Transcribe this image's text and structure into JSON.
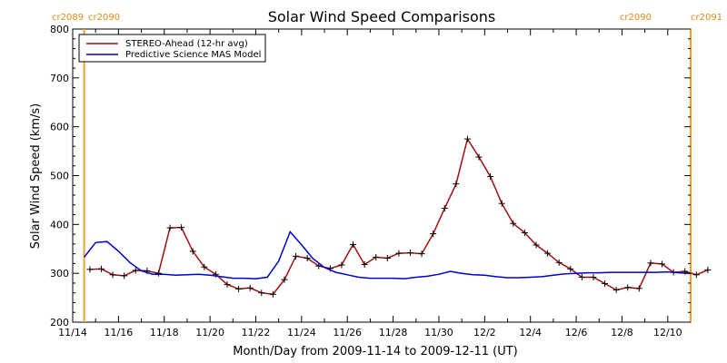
{
  "chart_data": {
    "type": "line",
    "title": "Solar Wind Speed Comparisons",
    "xlabel": "Month/Day from 2009-11-14 to 2009-12-11 (UT)",
    "ylabel": "Solar Wind Speed (km/s)",
    "xlim": [
      "2009-11-14",
      "2009-12-11"
    ],
    "ylim": [
      200,
      800
    ],
    "x_ticks": [
      "11/14",
      "11/16",
      "11/18",
      "11/20",
      "11/22",
      "11/24",
      "11/26",
      "11/28",
      "11/30",
      "12/2",
      "12/4",
      "12/6",
      "12/8",
      "12/10"
    ],
    "y_ticks": [
      200,
      300,
      400,
      500,
      600,
      700,
      800
    ],
    "legend_position": "top-left",
    "carrington_left": {
      "label_a": "cr2089",
      "label_b": "cr2090",
      "date": "2009-11-14 12:00"
    },
    "carrington_right": {
      "label_a": "cr2090",
      "label_b": "cr2091",
      "date": "2009-12-11"
    },
    "series": [
      {
        "name": "STEREO-Ahead (12-hr avg)",
        "color": "#a01010",
        "marker": "plus",
        "x": [
          "2009-11-14 18:00",
          "2009-11-15 06:00",
          "2009-11-15 18:00",
          "2009-11-16 06:00",
          "2009-11-16 18:00",
          "2009-11-17 06:00",
          "2009-11-17 18:00",
          "2009-11-18 06:00",
          "2009-11-18 18:00",
          "2009-11-19 06:00",
          "2009-11-19 18:00",
          "2009-11-20 06:00",
          "2009-11-20 18:00",
          "2009-11-21 06:00",
          "2009-11-21 18:00",
          "2009-11-22 06:00",
          "2009-11-22 18:00",
          "2009-11-23 06:00",
          "2009-11-23 18:00",
          "2009-11-24 06:00",
          "2009-11-24 18:00",
          "2009-11-25 06:00",
          "2009-11-25 18:00",
          "2009-11-26 06:00",
          "2009-11-26 18:00",
          "2009-11-27 06:00",
          "2009-11-27 18:00",
          "2009-11-28 06:00",
          "2009-11-28 18:00",
          "2009-11-29 06:00",
          "2009-11-29 18:00",
          "2009-11-30 06:00",
          "2009-11-30 18:00",
          "2009-12-01 06:00",
          "2009-12-01 18:00",
          "2009-12-02 06:00",
          "2009-12-02 18:00",
          "2009-12-03 06:00",
          "2009-12-03 18:00",
          "2009-12-04 06:00",
          "2009-12-04 18:00",
          "2009-12-05 06:00",
          "2009-12-05 18:00",
          "2009-12-06 06:00",
          "2009-12-06 18:00",
          "2009-12-07 06:00",
          "2009-12-07 18:00",
          "2009-12-08 06:00",
          "2009-12-08 18:00",
          "2009-12-09 06:00",
          "2009-12-09 18:00",
          "2009-12-10 06:00",
          "2009-12-10 18:00",
          "2009-12-11 06:00",
          "2009-12-11 18:00"
        ],
        "y": [
          308,
          309,
          297,
          295,
          306,
          305,
          300,
          393,
          394,
          345,
          313,
          298,
          277,
          268,
          270,
          260,
          257,
          287,
          335,
          331,
          315,
          310,
          317,
          359,
          318,
          333,
          331,
          341,
          342,
          340,
          381,
          433,
          483,
          575,
          538,
          498,
          443,
          402,
          383,
          358,
          341,
          322,
          309,
          292,
          292,
          279,
          266,
          271,
          269,
          321,
          319,
          302,
          304,
          297,
          307
        ]
      },
      {
        "name": "Predictive Science MAS Model",
        "color": "#0000cc",
        "marker": "none",
        "x": [
          "2009-11-14 12:00",
          "2009-11-15 00:00",
          "2009-11-15 12:00",
          "2009-11-16 00:00",
          "2009-11-16 12:00",
          "2009-11-17 00:00",
          "2009-11-17 12:00",
          "2009-11-18 00:00",
          "2009-11-18 12:00",
          "2009-11-19 00:00",
          "2009-11-19 12:00",
          "2009-11-20 00:00",
          "2009-11-20 12:00",
          "2009-11-21 00:00",
          "2009-11-21 12:00",
          "2009-11-22 00:00",
          "2009-11-22 12:00",
          "2009-11-23 00:00",
          "2009-11-23 12:00",
          "2009-11-24 00:00",
          "2009-11-24 12:00",
          "2009-11-25 00:00",
          "2009-11-25 12:00",
          "2009-11-26 00:00",
          "2009-11-26 12:00",
          "2009-11-27 00:00",
          "2009-11-27 12:00",
          "2009-11-28 00:00",
          "2009-11-28 12:00",
          "2009-11-29 00:00",
          "2009-11-29 12:00",
          "2009-11-30 00:00",
          "2009-11-30 12:00",
          "2009-12-01 00:00",
          "2009-12-01 12:00",
          "2009-12-02 00:00",
          "2009-12-02 12:00",
          "2009-12-03 00:00",
          "2009-12-03 12:00",
          "2009-12-04 00:00",
          "2009-12-04 12:00",
          "2009-12-05 00:00",
          "2009-12-05 12:00",
          "2009-12-06 00:00",
          "2009-12-06 12:00",
          "2009-12-07 00:00",
          "2009-12-07 12:00",
          "2009-12-08 00:00",
          "2009-12-08 12:00",
          "2009-12-09 00:00",
          "2009-12-09 12:00",
          "2009-12-10 00:00",
          "2009-12-10 12:00",
          "2009-12-11 00:00"
        ],
        "y": [
          333,
          363,
          365,
          345,
          322,
          305,
          298,
          298,
          296,
          297,
          298,
          296,
          293,
          290,
          290,
          289,
          292,
          325,
          385,
          358,
          330,
          312,
          302,
          297,
          292,
          290,
          290,
          290,
          289,
          292,
          294,
          298,
          304,
          300,
          297,
          296,
          293,
          291,
          291,
          292,
          293,
          296,
          299,
          300,
          301,
          301,
          302,
          302,
          302,
          302,
          302,
          303,
          301,
          300
        ]
      }
    ]
  }
}
